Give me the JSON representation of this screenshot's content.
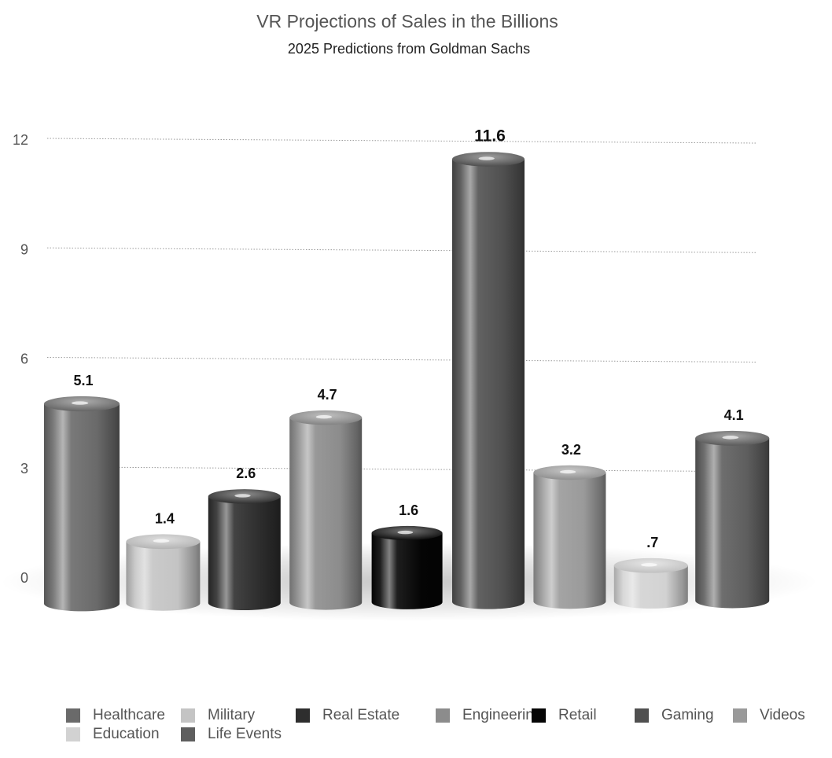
{
  "chart_data": {
    "type": "bar",
    "title": "VR Projections of Sales in the Billions",
    "subtitle": "2025 Predictions from Goldman Sachs",
    "categories": [
      "Healthcare",
      "Military",
      "Real Estate",
      "Engineering",
      "Retail",
      "Gaming",
      "Videos",
      "Education",
      "Life Events"
    ],
    "values": [
      5.1,
      1.4,
      2.6,
      4.7,
      1.6,
      11.6,
      3.2,
      0.7,
      4.1
    ],
    "value_labels": [
      "5.1",
      "1.4",
      "2.6",
      "4.7",
      "1.6",
      "11.6",
      "3.2",
      ".7",
      "4.1"
    ],
    "ylim": [
      0,
      12
    ],
    "yticks": [
      0,
      3,
      6,
      9,
      12
    ],
    "ytick_labels": [
      "0",
      "3",
      "6",
      "9",
      "12"
    ],
    "grid": true,
    "legend_position": "bottom",
    "colors": [
      "#6a6a6a",
      "#c4c4c4",
      "#2e2e2e",
      "#8c8c8c",
      "#050505",
      "#505050",
      "#9a9a9a",
      "#d2d2d2",
      "#5e5e5e"
    ],
    "xlabel": "",
    "ylabel": ""
  }
}
